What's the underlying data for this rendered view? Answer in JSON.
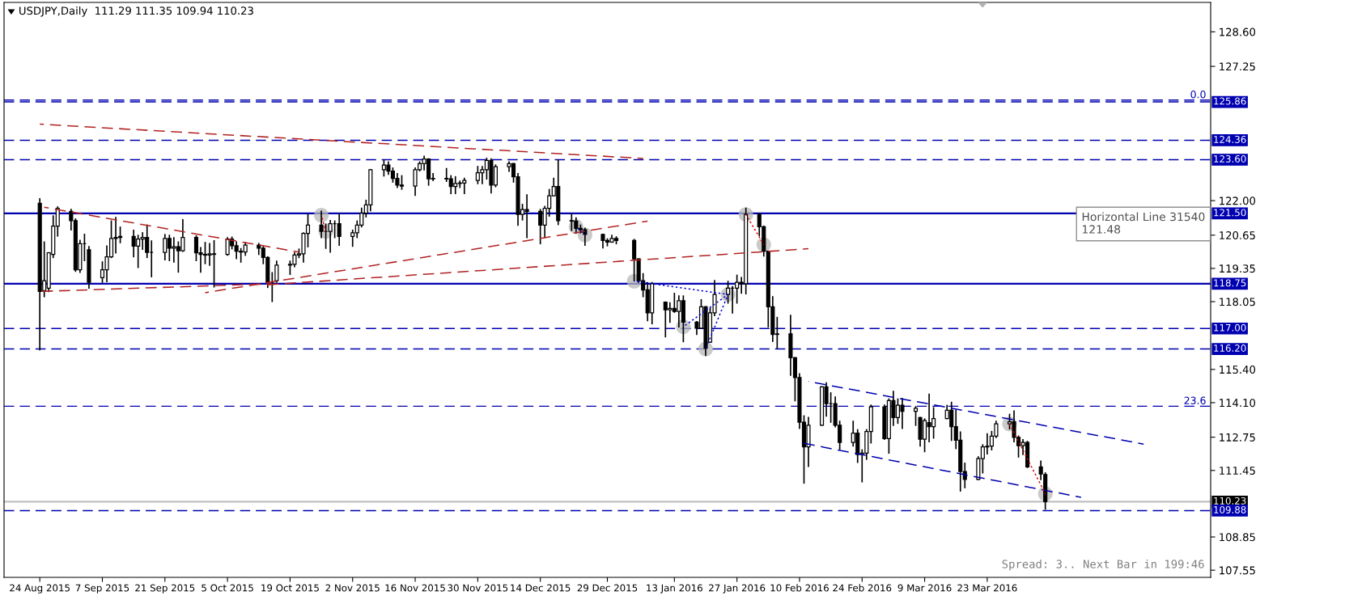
{
  "chart_data": {
    "type": "candlestick",
    "title": "USDJPY,Daily  111.29 111.35 109.94 110.23",
    "color": "#000000",
    "x": [
      "2015-08-24",
      "2015-08-25",
      "2015-08-26",
      "2015-08-27",
      "2015-08-28",
      "2015-08-31",
      "2015-09-01",
      "2015-09-02",
      "2015-09-03",
      "2015-09-04",
      "2015-09-07",
      "2015-09-08",
      "2015-09-09",
      "2015-09-10",
      "2015-09-11",
      "2015-09-14",
      "2015-09-15",
      "2015-09-16",
      "2015-09-17",
      "2015-09-18",
      "2015-09-21",
      "2015-09-22",
      "2015-09-23",
      "2015-09-24",
      "2015-09-25",
      "2015-09-28",
      "2015-09-29",
      "2015-09-30",
      "2015-10-01",
      "2015-10-02",
      "2015-10-05",
      "2015-10-06",
      "2015-10-07",
      "2015-10-08",
      "2015-10-09",
      "2015-10-12",
      "2015-10-13",
      "2015-10-14",
      "2015-10-15",
      "2015-10-16",
      "2015-10-19",
      "2015-10-20",
      "2015-10-21",
      "2015-10-22",
      "2015-10-23",
      "2015-10-26",
      "2015-10-27",
      "2015-10-28",
      "2015-10-29",
      "2015-10-30",
      "2015-11-02",
      "2015-11-03",
      "2015-11-04",
      "2015-11-05",
      "2015-11-06",
      "2015-11-09",
      "2015-11-10",
      "2015-11-11",
      "2015-11-12",
      "2015-11-13",
      "2015-11-16",
      "2015-11-17",
      "2015-11-18",
      "2015-11-19",
      "2015-11-20",
      "2015-11-23",
      "2015-11-24",
      "2015-11-25",
      "2015-11-26",
      "2015-11-27",
      "2015-11-30",
      "2015-12-01",
      "2015-12-02",
      "2015-12-03",
      "2015-12-04",
      "2015-12-07",
      "2015-12-08",
      "2015-12-09",
      "2015-12-10",
      "2015-12-11",
      "2015-12-14",
      "2015-12-15",
      "2015-12-16",
      "2015-12-17",
      "2015-12-18",
      "2015-12-21",
      "2015-12-22",
      "2015-12-23",
      "2015-12-24",
      "2015-12-28",
      "2015-12-29",
      "2015-12-30",
      "2015-12-31",
      "2016-01-04",
      "2016-01-05",
      "2016-01-06",
      "2016-01-07",
      "2016-01-08",
      "2016-01-11",
      "2016-01-12",
      "2016-01-13",
      "2016-01-14",
      "2016-01-15",
      "2016-01-18",
      "2016-01-19",
      "2016-01-20",
      "2016-01-21",
      "2016-01-22",
      "2016-01-25",
      "2016-01-26",
      "2016-01-27",
      "2016-01-28",
      "2016-01-29",
      "2016-02-01",
      "2016-02-02",
      "2016-02-03",
      "2016-02-04",
      "2016-02-05",
      "2016-02-08",
      "2016-02-09",
      "2016-02-10",
      "2016-02-11",
      "2016-02-12",
      "2016-02-15",
      "2016-02-16",
      "2016-02-17",
      "2016-02-18",
      "2016-02-19",
      "2016-02-22",
      "2016-02-23",
      "2016-02-24",
      "2016-02-25",
      "2016-02-26",
      "2016-02-29",
      "2016-03-01",
      "2016-03-02",
      "2016-03-03",
      "2016-03-04",
      "2016-03-07",
      "2016-03-08",
      "2016-03-09",
      "2016-03-10",
      "2016-03-11",
      "2016-03-14",
      "2016-03-15",
      "2016-03-16",
      "2016-03-17",
      "2016-03-18",
      "2016-03-21",
      "2016-03-22",
      "2016-03-23",
      "2016-03-24",
      "2016-03-25",
      "2016-03-28",
      "2016-03-29",
      "2016-03-30",
      "2016-03-31",
      "2016-04-01",
      "2016-04-04",
      "2016-04-05"
    ],
    "ohlc": [
      [
        121.9,
        122.07,
        116.17,
        118.45
      ],
      [
        118.48,
        120.38,
        118.25,
        118.87
      ],
      [
        118.58,
        119.96,
        118.45,
        119.96
      ],
      [
        119.9,
        121.4,
        119.78,
        121.0
      ],
      [
        121.0,
        121.75,
        120.62,
        121.7
      ],
      [
        121.58,
        121.65,
        120.86,
        121.22
      ],
      [
        121.22,
        121.28,
        119.24,
        119.3
      ],
      [
        119.3,
        120.44,
        119.2,
        120.32
      ],
      [
        120.32,
        120.68,
        119.66,
        120.32
      ],
      [
        120.08,
        120.2,
        118.58,
        118.81
      ],
      [
        118.99,
        119.6,
        118.81,
        119.3
      ],
      [
        119.3,
        120.22,
        118.84,
        119.8
      ],
      [
        119.8,
        121.2,
        119.78,
        120.52
      ],
      [
        120.52,
        121.34,
        119.96,
        120.56
      ],
      [
        120.56,
        120.96,
        120.36,
        120.6
      ],
      [
        120.6,
        120.84,
        119.81,
        120.22
      ],
      [
        120.22,
        120.64,
        119.39,
        120.5
      ],
      [
        120.5,
        120.74,
        120.1,
        120.56
      ],
      [
        120.56,
        121.04,
        119.78,
        119.98
      ],
      [
        119.98,
        120.42,
        119.03,
        119.98
      ],
      [
        119.98,
        120.67,
        119.69,
        120.52
      ],
      [
        120.52,
        120.64,
        119.66,
        120.14
      ],
      [
        120.14,
        120.55,
        119.6,
        120.2
      ],
      [
        120.2,
        120.38,
        119.21,
        120.04
      ],
      [
        120.04,
        121.25,
        120.02,
        120.56
      ],
      [
        120.56,
        120.62,
        119.66,
        119.96
      ],
      [
        119.96,
        120.16,
        119.21,
        119.9
      ],
      [
        119.9,
        120.36,
        119.54,
        119.87
      ],
      [
        119.87,
        120.32,
        119.48,
        119.92
      ],
      [
        119.92,
        120.43,
        118.63,
        119.9
      ],
      [
        119.9,
        120.55,
        119.87,
        120.5
      ],
      [
        120.5,
        120.57,
        120.12,
        120.24
      ],
      [
        120.24,
        120.38,
        119.74,
        120.02
      ],
      [
        120.02,
        120.12,
        119.6,
        119.99
      ],
      [
        119.99,
        120.36,
        119.87,
        120.26
      ],
      [
        120.26,
        120.32,
        119.9,
        120.14
      ],
      [
        120.14,
        120.2,
        119.54,
        119.78
      ],
      [
        119.78,
        119.8,
        118.61,
        118.81
      ],
      [
        118.81,
        119.18,
        118.06,
        118.81
      ],
      [
        118.87,
        119.63,
        118.81,
        119.48
      ],
      [
        119.48,
        119.63,
        119.12,
        119.51
      ],
      [
        119.51,
        119.96,
        119.42,
        119.87
      ],
      [
        119.87,
        120.1,
        119.78,
        119.92
      ],
      [
        119.92,
        120.74,
        119.6,
        120.72
      ],
      [
        120.72,
        121.46,
        120.2,
        121.04
      ],
      [
        121.04,
        121.58,
        120.56,
        120.8
      ],
      [
        120.8,
        121.08,
        120.14,
        120.8
      ],
      [
        120.8,
        121.22,
        119.99,
        121.1
      ],
      [
        121.1,
        121.2,
        120.56,
        121.1
      ],
      [
        121.1,
        121.49,
        120.26,
        120.6
      ],
      [
        120.6,
        120.84,
        120.22,
        120.74
      ],
      [
        120.74,
        121.2,
        120.56,
        121.04
      ],
      [
        121.04,
        121.7,
        120.98,
        121.51
      ],
      [
        121.51,
        122.01,
        121.37,
        121.83
      ],
      [
        121.83,
        123.21,
        121.61,
        123.21
      ],
      [
        123.21,
        123.57,
        122.97,
        123.39
      ],
      [
        123.39,
        123.51,
        123.03,
        123.15
      ],
      [
        123.15,
        123.27,
        122.73,
        122.87
      ],
      [
        122.87,
        123.05,
        122.52,
        122.61
      ],
      [
        122.61,
        122.97,
        122.45,
        122.57
      ],
      [
        122.57,
        123.27,
        122.21,
        123.21
      ],
      [
        123.21,
        123.51,
        123.17,
        123.45
      ],
      [
        123.45,
        123.73,
        123.21,
        123.63
      ],
      [
        123.63,
        123.63,
        122.61,
        122.85
      ],
      [
        122.85,
        123.05,
        122.79,
        122.87
      ],
      [
        122.87,
        123.25,
        122.76,
        122.85
      ],
      [
        122.85,
        122.97,
        122.28,
        122.55
      ],
      [
        122.55,
        122.93,
        122.28,
        122.67
      ],
      [
        122.67,
        122.76,
        122.52,
        122.69
      ],
      [
        122.69,
        122.87,
        122.28,
        122.79
      ],
      [
        122.79,
        123.33,
        122.67,
        123.09
      ],
      [
        123.09,
        123.33,
        122.67,
        123.21
      ],
      [
        123.21,
        123.65,
        122.85,
        123.57
      ],
      [
        123.57,
        123.63,
        122.31,
        122.61
      ],
      [
        122.61,
        123.39,
        122.55,
        123.33
      ],
      [
        123.33,
        123.51,
        123.15,
        123.45
      ],
      [
        123.45,
        123.45,
        122.73,
        122.93
      ],
      [
        122.93,
        123.05,
        121.04,
        121.46
      ],
      [
        121.46,
        121.85,
        121.25,
        121.65
      ],
      [
        121.65,
        122.22,
        120.56,
        121.58
      ],
      [
        121.58,
        121.65,
        120.32,
        121.04
      ],
      [
        121.04,
        121.77,
        120.56,
        121.7
      ],
      [
        121.7,
        122.43,
        121.4,
        122.19
      ],
      [
        122.19,
        122.87,
        122.19,
        122.55
      ],
      [
        122.55,
        123.59,
        121.07,
        121.22
      ],
      [
        121.22,
        121.49,
        120.84,
        121.2
      ],
      [
        121.2,
        121.32,
        120.74,
        120.92
      ],
      [
        120.92,
        121.04,
        120.74,
        120.86
      ],
      [
        120.86,
        120.92,
        120.26,
        120.68
      ],
      [
        120.68,
        120.68,
        120.16,
        120.44
      ],
      [
        120.44,
        120.5,
        120.24,
        120.38
      ],
      [
        120.38,
        120.64,
        120.38,
        120.52
      ],
      [
        120.52,
        120.58,
        120.32,
        120.44
      ],
      [
        120.44,
        120.48,
        118.87,
        119.72
      ],
      [
        119.72,
        119.72,
        118.81,
        118.87
      ],
      [
        118.87,
        119.14,
        118.25,
        118.51
      ],
      [
        118.51,
        118.79,
        117.31,
        117.61
      ],
      [
        117.61,
        118.79,
        117.19,
        118.75
      ],
      [
        118.03,
        118.03,
        116.68,
        117.73
      ],
      [
        117.73,
        118.0,
        117.25,
        117.79
      ],
      [
        117.79,
        118.37,
        117.64,
        117.67
      ],
      [
        117.67,
        118.27,
        117.07,
        118.09
      ],
      [
        118.09,
        118.27,
        116.49,
        117.25
      ],
      [
        117.25,
        117.27,
        116.77,
        117.01
      ],
      [
        117.01,
        118.12,
        117.01,
        117.85
      ],
      [
        117.85,
        117.85,
        115.95,
        116.23
      ],
      [
        116.47,
        117.79,
        116.47,
        117.61
      ],
      [
        117.61,
        118.87,
        117.51,
        118.33
      ],
      [
        118.33,
        118.84,
        118.0,
        118.58
      ],
      [
        118.58,
        118.63,
        117.61,
        118.58
      ],
      [
        118.58,
        119.08,
        118.0,
        118.81
      ],
      [
        118.81,
        118.99,
        118.39,
        118.75
      ],
      [
        118.75,
        121.7,
        118.36,
        121.46
      ],
      [
        121.46,
        121.5,
        120.64,
        120.98
      ],
      [
        120.98,
        121.0,
        119.84,
        120.02
      ],
      [
        120.02,
        120.02,
        117.07,
        117.85
      ],
      [
        117.85,
        118.24,
        116.5,
        116.77
      ],
      [
        116.77,
        117.43,
        116.23,
        116.79
      ],
      [
        116.79,
        117.51,
        115.18,
        115.86
      ],
      [
        115.86,
        115.86,
        114.18,
        115.08
      ],
      [
        115.08,
        115.23,
        113.1,
        113.34
      ],
      [
        113.34,
        113.58,
        110.96,
        112.37
      ],
      [
        112.37,
        113.52,
        111.61,
        113.22
      ],
      [
        113.22,
        114.72,
        113.22,
        114.72
      ],
      [
        114.72,
        114.87,
        113.58,
        114.06
      ],
      [
        114.06,
        114.48,
        113.34,
        114.06
      ],
      [
        114.06,
        114.32,
        113.16,
        113.22
      ],
      [
        113.22,
        113.37,
        112.29,
        112.55
      ],
      [
        112.55,
        113.37,
        112.41,
        112.91
      ],
      [
        112.91,
        113.04,
        111.77,
        112.07
      ],
      [
        112.07,
        112.25,
        111.01,
        112.13
      ],
      [
        112.13,
        113.04,
        111.89,
        112.97
      ],
      [
        112.97,
        114.0,
        112.53,
        113.94
      ],
      [
        113.94,
        114.0,
        112.67,
        112.7
      ],
      [
        112.7,
        114.24,
        112.13,
        114.18
      ],
      [
        114.18,
        114.54,
        113.22,
        113.52
      ],
      [
        113.52,
        114.24,
        113.3,
        114.0
      ],
      [
        114.0,
        114.26,
        113.1,
        113.76
      ],
      [
        113.76,
        113.94,
        113.22,
        113.88
      ],
      [
        113.52,
        113.52,
        112.41,
        112.67
      ],
      [
        112.67,
        113.46,
        112.19,
        113.4
      ],
      [
        113.32,
        114.43,
        112.58,
        113.16
      ],
      [
        113.16,
        113.9,
        112.72,
        113.48
      ],
      [
        113.48,
        113.99,
        113.48,
        113.8
      ],
      [
        113.8,
        114.11,
        112.63,
        113.16
      ],
      [
        113.16,
        113.8,
        112.31,
        112.63
      ],
      [
        112.63,
        112.95,
        110.65,
        111.41
      ],
      [
        111.41,
        111.73,
        110.78,
        111.1
      ],
      [
        111.1,
        111.98,
        111.1,
        111.91
      ],
      [
        111.91,
        112.45,
        111.36,
        112.37
      ],
      [
        112.37,
        112.88,
        112.1,
        112.4
      ],
      [
        112.4,
        112.97,
        112.26,
        112.79
      ],
      [
        112.79,
        113.37,
        112.74,
        113.27
      ],
      [
        113.27,
        113.64,
        113.08,
        113.35
      ],
      [
        113.35,
        113.77,
        112.58,
        112.74
      ],
      [
        112.74,
        112.79,
        111.98,
        112.42
      ],
      [
        112.42,
        112.65,
        112.08,
        112.55
      ],
      [
        112.55,
        112.58,
        111.57,
        111.59
      ],
      [
        111.59,
        111.81,
        111.1,
        111.31
      ],
      [
        111.29,
        111.35,
        109.94,
        110.23
      ]
    ],
    "series": [
      {
        "type": "line",
        "x": [
          "2015-08-24",
          "2016-01-06"
        ],
        "values": [
          124.99,
          123.65
        ],
        "color": "#b22222",
        "line_style": "dashed"
      },
      {
        "type": "line",
        "x": [
          "2015-08-25",
          "2015-10-21"
        ],
        "values": [
          121.74,
          119.99
        ],
        "color": "#b22222",
        "line_style": "dashed"
      },
      {
        "type": "line",
        "x": [
          "2015-08-24",
          "2015-10-15"
        ],
        "values": [
          118.45,
          118.75
        ],
        "color": "#b22222",
        "line_style": "dashed"
      },
      {
        "type": "line",
        "x": [
          "2015-09-30",
          "2016-01-07"
        ],
        "values": [
          118.4,
          121.2
        ],
        "color": "#b22222",
        "line_style": "dashed"
      },
      {
        "type": "line",
        "x": [
          "2015-10-13",
          "2016-02-12"
        ],
        "values": [
          118.7,
          120.12
        ],
        "color": "#b22222",
        "line_style": "dashed"
      },
      {
        "type": "line",
        "x": [
          "2016-02-12",
          "2016-04-27"
        ],
        "values": [
          114.93,
          112.48
        ],
        "color": "#0000b0",
        "line_style": "dashed"
      },
      {
        "type": "line",
        "x": [
          "2016-02-11",
          "2016-04-13"
        ],
        "values": [
          112.51,
          110.4
        ],
        "color": "#0000b0",
        "line_style": "dashed"
      },
      {
        "type": "line",
        "x": [
          "2015-10-26",
          "2015-10-27"
        ],
        "values": [
          121.43,
          120.8
        ],
        "color": "#dd0000",
        "line_style": "dotted"
      },
      {
        "type": "line",
        "x": [
          "2015-12-22",
          "2015-12-24"
        ],
        "values": [
          120.98,
          120.66
        ],
        "color": "#0000dd",
        "line_style": "dotted"
      },
      {
        "type": "line",
        "x": [
          "2016-01-04",
          "2016-01-25"
        ],
        "values": [
          118.85,
          118.33
        ],
        "color": "#0000dd",
        "line_style": "dotted"
      },
      {
        "type": "line",
        "x": [
          "2016-01-15",
          "2016-01-25"
        ],
        "values": [
          117.07,
          118.33
        ],
        "color": "#0000dd",
        "line_style": "dotted"
      },
      {
        "type": "line",
        "x": [
          "2016-01-20",
          "2016-01-25"
        ],
        "values": [
          116.2,
          118.33
        ],
        "color": "#0000dd",
        "line_style": "dotted"
      },
      {
        "type": "line",
        "x": [
          "2016-01-29",
          "2016-02-02"
        ],
        "values": [
          121.46,
          120.28
        ],
        "color": "#dd0000",
        "line_style": "dotted"
      },
      {
        "type": "line",
        "x": [
          "2016-03-28",
          "2016-04-05"
        ],
        "values": [
          113.27,
          110.54
        ],
        "color": "#dd0000",
        "line_style": "dotted"
      },
      {
        "type": "scatter",
        "marker": "circle",
        "color": "#b8b8b8",
        "x": [
          "2015-10-26",
          "2015-10-27",
          "2015-12-22",
          "2015-12-24",
          "2016-01-04",
          "2016-01-15",
          "2016-01-20",
          "2016-01-25",
          "2016-01-29",
          "2016-02-02",
          "2016-03-28",
          "2016-04-05"
        ],
        "values": [
          121.43,
          120.8,
          120.98,
          120.66,
          118.85,
          117.07,
          116.2,
          118.33,
          121.46,
          120.28,
          113.27,
          110.54
        ]
      }
    ],
    "ref_lines": [
      {
        "axis": "y",
        "value": 125.93,
        "color": "#0000b0",
        "line_style": "dashed"
      },
      {
        "axis": "y",
        "value": 125.86,
        "label": "125.86",
        "color": "#0000b0",
        "line_style": "dashed"
      },
      {
        "axis": "y",
        "value": 124.36,
        "label": "124.36",
        "color": "#0000b0",
        "line_style": "dashed"
      },
      {
        "axis": "y",
        "value": 123.6,
        "label": "123.60",
        "color": "#0000b0",
        "line_style": "dashed"
      },
      {
        "axis": "y",
        "value": 121.5,
        "label": "121.50",
        "color": "#0000b0",
        "line_style": "solid"
      },
      {
        "axis": "y",
        "value": 118.75,
        "label": "118.75",
        "color": "#0000b0",
        "line_style": "solid"
      },
      {
        "axis": "y",
        "value": 117.0,
        "label": "117.00",
        "color": "#0000b0",
        "line_style": "dashed"
      },
      {
        "axis": "y",
        "value": 116.2,
        "label": "116.20",
        "color": "#0000b0",
        "line_style": "dashed"
      },
      {
        "axis": "y",
        "value": 113.96,
        "color": "#0000b0",
        "line_style": "dashed"
      },
      {
        "axis": "y",
        "value": 110.23,
        "label": "110.23",
        "color": "#c0c0c0",
        "line_style": "solid"
      },
      {
        "axis": "y",
        "value": 109.88,
        "label": "109.88",
        "color": "#0000b0",
        "line_style": "dashed"
      }
    ],
    "annotations": [
      "Horizontal Line 31540\n121.48",
      "Spread: 3.. Next Bar in 199:46",
      {
        "text": "0.0",
        "x": "2016-05-11",
        "y": 125.93
      },
      {
        "text": "23.6",
        "x": "2016-05-11",
        "y": 113.96
      }
    ],
    "xlim": [
      "2015-08-16",
      "2016-05-12"
    ],
    "xticks": [
      {
        "value": "2015-08-24",
        "label": "24 Aug 2015"
      },
      {
        "value": "2015-09-07",
        "label": "7 Sep 2015"
      },
      {
        "value": "2015-09-21",
        "label": "21 Sep 2015"
      },
      {
        "value": "2015-10-05",
        "label": "5 Oct 2015"
      },
      {
        "value": "2015-10-19",
        "label": "19 Oct 2015"
      },
      {
        "value": "2015-11-02",
        "label": "2 Nov 2015"
      },
      {
        "value": "2015-11-16",
        "label": "16 Nov 2015"
      },
      {
        "value": "2015-11-30",
        "label": "30 Nov 2015"
      },
      {
        "value": "2015-12-14",
        "label": "14 Dec 2015"
      },
      {
        "value": "2015-12-29",
        "label": "29 Dec 2015"
      },
      {
        "value": "2016-01-13",
        "label": "13 Jan 2016"
      },
      {
        "value": "2016-01-27",
        "label": "27 Jan 2016"
      },
      {
        "value": "2016-02-10",
        "label": "10 Feb 2016"
      },
      {
        "value": "2016-02-24",
        "label": "24 Feb 2016"
      },
      {
        "value": "2016-03-09",
        "label": "9 Mar 2016"
      },
      {
        "value": "2016-03-23",
        "label": "23 Mar 2016"
      }
    ],
    "ylim": [
      107.27,
      129.75
    ],
    "yticks": [
      {
        "value": 128.6,
        "label": "128.60"
      },
      {
        "value": 127.25,
        "label": "127.25"
      },
      {
        "value": 122.0,
        "label": "122.00"
      },
      {
        "value": 120.65,
        "label": "120.65"
      },
      {
        "value": 119.35,
        "label": "119.35"
      },
      {
        "value": 118.05,
        "label": "118.05"
      },
      {
        "value": 115.4,
        "label": "115.40"
      },
      {
        "value": 114.1,
        "label": "114.10"
      },
      {
        "value": 112.75,
        "label": "112.75"
      },
      {
        "value": 111.45,
        "label": "111.45"
      },
      {
        "value": 108.85,
        "label": "108.85"
      },
      {
        "value": 107.55,
        "label": "107.55"
      }
    ]
  }
}
